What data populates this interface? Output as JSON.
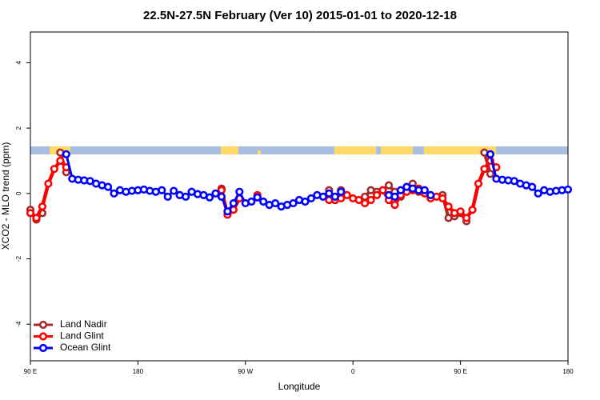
{
  "chart_data": {
    "type": "line",
    "title": "22.5N-27.5N February (Ver 10)   2015-01-01 to 2020-12-18",
    "x_label": "Longitude",
    "y_label": "XCO2 - MLO trend (ppm)",
    "x": [
      90,
      95,
      100,
      105,
      110,
      115,
      120,
      125,
      130,
      135,
      140,
      145,
      150,
      155,
      160,
      165,
      170,
      175,
      180,
      185,
      190,
      195,
      200,
      205,
      210,
      215,
      220,
      225,
      230,
      235,
      240,
      245,
      250,
      255,
      260,
      265,
      270,
      275,
      280,
      285,
      290,
      295,
      300,
      305,
      310,
      315,
      320,
      325,
      330,
      335,
      340,
      345,
      350,
      355,
      360,
      365,
      370,
      375,
      380,
      385,
      390,
      395,
      400,
      405,
      410,
      415,
      420,
      425,
      430,
      435,
      440,
      445,
      450,
      455,
      460,
      465,
      470,
      475,
      480,
      485,
      490,
      495,
      500,
      505,
      510,
      515,
      520,
      525,
      530,
      535,
      540
    ],
    "xlim": [
      90,
      540
    ],
    "xticks": [
      {
        "value": 90,
        "label": "90 E"
      },
      180,
      {
        "value": 270,
        "label": "90 W"
      },
      {
        "value": 360,
        "label": "0"
      },
      {
        "value": 450,
        "label": "90 E"
      },
      {
        "value": 540,
        "label": "180"
      }
    ],
    "ylim": [
      -5.12,
      4.94
    ],
    "yticks": [
      -4,
      -2,
      0,
      2,
      4
    ],
    "legend": "bottomleft",
    "series": [
      {
        "name": "Land Nadir",
        "color": "#a52a2a",
        "values": [
          -0.5,
          -0.8,
          -0.6,
          null,
          null,
          1.25,
          0.65,
          null,
          null,
          null,
          null,
          null,
          null,
          null,
          null,
          null,
          null,
          null,
          null,
          null,
          null,
          null,
          null,
          null,
          null,
          null,
          null,
          null,
          null,
          null,
          null,
          null,
          0.15,
          null,
          null,
          null,
          null,
          null,
          null,
          null,
          null,
          null,
          null,
          null,
          null,
          null,
          null,
          null,
          null,
          null,
          0.1,
          -0.2,
          0.1,
          null,
          null,
          null,
          -0.1,
          0.1,
          0.05,
          0.1,
          0.25,
          0.05,
          -0.1,
          null,
          0.3,
          0.05,
          null,
          null,
          null,
          -0.05,
          -0.75,
          -0.7,
          -0.6,
          -0.85,
          null,
          null,
          1.25,
          0.6,
          null,
          null,
          null,
          null,
          null,
          null,
          null,
          null,
          null,
          null,
          null,
          null,
          null
        ]
      },
      {
        "name": "Land Glint",
        "color": "#ff0000",
        "values": [
          -0.6,
          -0.75,
          -0.4,
          0.3,
          0.75,
          1.0,
          0.8,
          null,
          null,
          null,
          null,
          null,
          null,
          null,
          null,
          null,
          null,
          null,
          null,
          null,
          null,
          null,
          null,
          null,
          null,
          null,
          null,
          null,
          null,
          null,
          null,
          null,
          0.1,
          -0.65,
          -0.5,
          -0.15,
          null,
          null,
          -0.05,
          null,
          null,
          null,
          null,
          null,
          null,
          null,
          null,
          null,
          null,
          null,
          -0.2,
          -0.2,
          -0.15,
          -0.05,
          -0.15,
          -0.2,
          -0.3,
          -0.2,
          -0.05,
          0.1,
          -0.2,
          -0.35,
          -0.05,
          0.05,
          0.1,
          0.15,
          0,
          -0.15,
          -0.1,
          -0.15,
          -0.4,
          -0.6,
          -0.55,
          -0.75,
          -0.5,
          0.3,
          0.75,
          1.0,
          0.8,
          null,
          null,
          null,
          null,
          null,
          null,
          null,
          null,
          null,
          null,
          null,
          null
        ]
      },
      {
        "name": "Ocean Glint",
        "color": "#0000ff",
        "values": [
          null,
          null,
          null,
          null,
          null,
          null,
          1.2,
          0.45,
          0.42,
          0.4,
          0.38,
          0.3,
          0.25,
          0.2,
          0.0,
          0.1,
          0.05,
          0.08,
          0.1,
          0.12,
          0.08,
          0.05,
          0.1,
          -0.1,
          0.08,
          -0.05,
          -0.1,
          0.05,
          -0.02,
          -0.05,
          -0.12,
          0.0,
          -0.1,
          -0.55,
          -0.3,
          0.05,
          -0.3,
          -0.25,
          -0.12,
          -0.25,
          -0.35,
          -0.3,
          -0.4,
          -0.35,
          -0.3,
          -0.2,
          -0.25,
          -0.15,
          -0.05,
          -0.1,
          0.0,
          -0.1,
          0.05,
          null,
          null,
          null,
          null,
          null,
          null,
          null,
          -0.05,
          -0.1,
          0.1,
          0.2,
          0.15,
          0.1,
          0.1,
          -0.05,
          null,
          null,
          null,
          null,
          null,
          null,
          null,
          null,
          null,
          1.2,
          0.45,
          0.42,
          0.4,
          0.38,
          0.3,
          0.25,
          0.2,
          0.0,
          0.1,
          0.05,
          0.08,
          0.1,
          0.12
        ]
      }
    ]
  }
}
